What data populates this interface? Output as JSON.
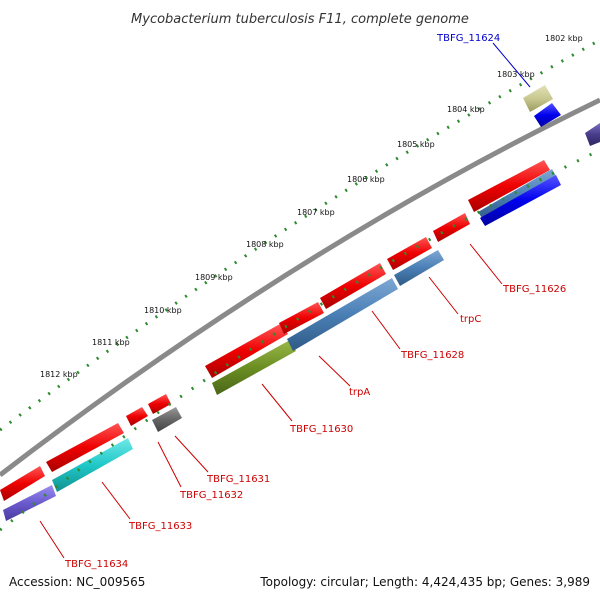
{
  "title": "Mycobacterium tuberculosis F11, complete genome",
  "footer": {
    "accession": "Accession: NC_009565",
    "summary": "Topology: circular; Length: 4,424,435 bp; Genes: 3,989"
  },
  "ticks": [
    "1802 kbp",
    "1803 kbp",
    "1804 kbp",
    "1805 kbp",
    "1806 kbp",
    "1807 kbp",
    "1808 kbp",
    "1809 kbp",
    "1810 kbp",
    "1811 kbp",
    "1812 kbp"
  ],
  "gene_labels": [
    "TBFG_11624",
    "TBFG_11626",
    "trpC",
    "TBFG_11628",
    "trpA",
    "TBFG_11630",
    "TBFG_11631",
    "TBFG_11632",
    "TBFG_11633",
    "TBFG_11634"
  ],
  "colors": {
    "cds": "#ee0000",
    "backbone": "#808080",
    "tick_dots": "#2e8b2e",
    "label_red": "#cc0000",
    "label_blue": "#0000cc",
    "steelblue": "#4a7fb5",
    "olive": "#6b8e23",
    "cyan": "#20c8c8",
    "slateblue": "#6a5acd",
    "khaki": "#c8c890",
    "blue": "#0000ee",
    "darkgray": "#666666",
    "darkslate": "#483d8b"
  }
}
